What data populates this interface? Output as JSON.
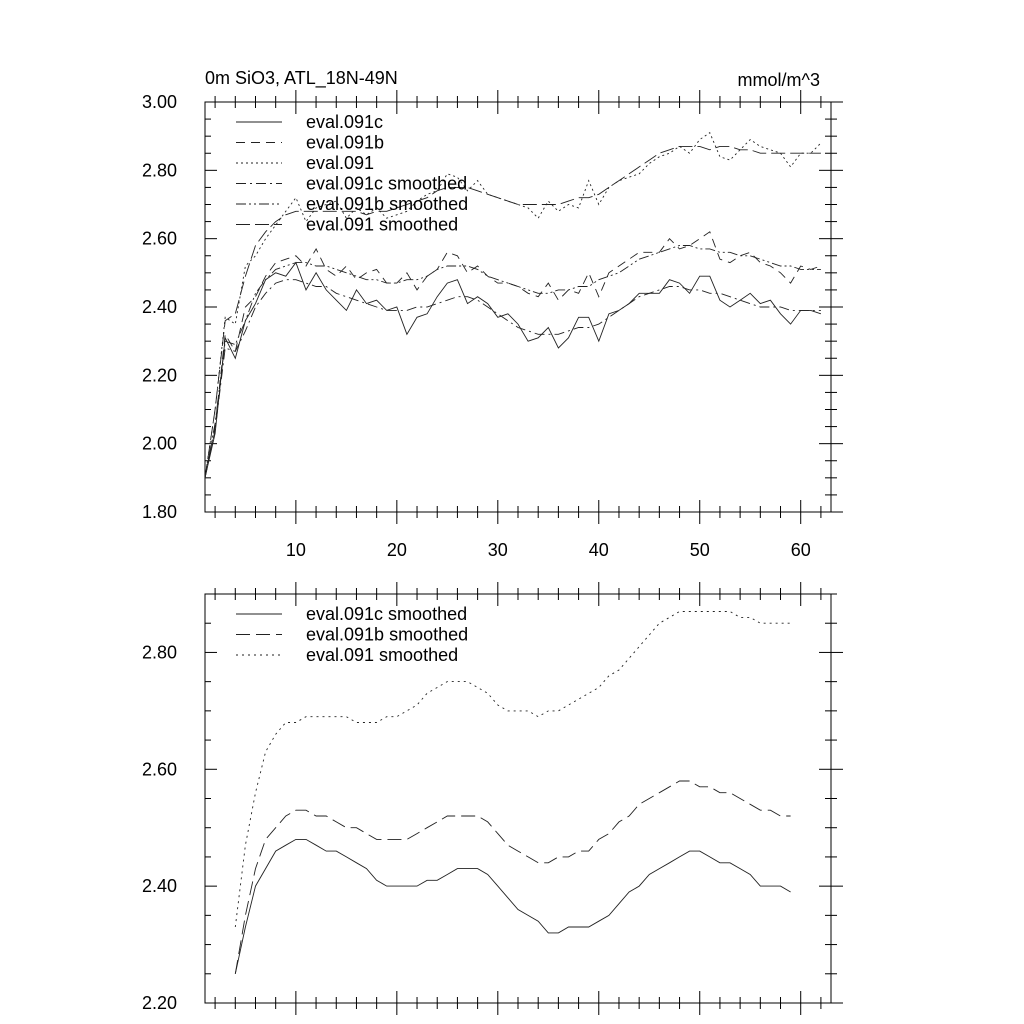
{
  "chart_data": [
    {
      "type": "line",
      "title": "0m SiO3, ATL_18N-49N",
      "units": "mmol/m^3",
      "xlim": [
        1,
        63
      ],
      "ylim": [
        1.8,
        3.0
      ],
      "xticks": [
        10,
        20,
        30,
        40,
        50,
        60
      ],
      "xtick_labels": [
        "10",
        "20",
        "30",
        "40",
        "50",
        "60"
      ],
      "yticks": [
        1.8,
        2.0,
        2.2,
        2.4,
        2.6,
        2.8,
        3.0
      ],
      "ytick_labels": [
        "1.80",
        "2.00",
        "2.20",
        "2.40",
        "2.60",
        "2.80",
        "3.00"
      ],
      "x": [
        1,
        2,
        3,
        4,
        5,
        6,
        7,
        8,
        9,
        10,
        11,
        12,
        13,
        14,
        15,
        16,
        17,
        18,
        19,
        20,
        21,
        22,
        23,
        24,
        25,
        26,
        27,
        28,
        29,
        30,
        31,
        32,
        33,
        34,
        35,
        36,
        37,
        38,
        39,
        40,
        41,
        42,
        43,
        44,
        45,
        46,
        47,
        48,
        49,
        50,
        51,
        52,
        53,
        54,
        55,
        56,
        57,
        58,
        59,
        60,
        61,
        62
      ],
      "series": [
        {
          "name": "eval.091c",
          "dash": "",
          "values": [
            1.9,
            2.03,
            2.31,
            2.25,
            2.36,
            2.41,
            2.48,
            2.5,
            2.49,
            2.53,
            2.45,
            2.5,
            2.45,
            2.42,
            2.39,
            2.45,
            2.41,
            2.42,
            2.39,
            2.4,
            2.32,
            2.37,
            2.38,
            2.43,
            2.47,
            2.48,
            2.41,
            2.43,
            2.41,
            2.37,
            2.38,
            2.35,
            2.3,
            2.31,
            2.34,
            2.28,
            2.31,
            2.37,
            2.37,
            2.3,
            2.38,
            2.39,
            2.41,
            2.44,
            2.44,
            2.44,
            2.48,
            2.47,
            2.44,
            2.49,
            2.49,
            2.42,
            2.4,
            2.42,
            2.44,
            2.41,
            2.42,
            2.38,
            2.35,
            2.39,
            2.39,
            2.38
          ]
        },
        {
          "name": "eval.091b",
          "dash": "9,6",
          "values": [
            1.9,
            2.05,
            2.32,
            2.27,
            2.4,
            2.43,
            2.49,
            2.53,
            2.54,
            2.55,
            2.52,
            2.57,
            2.51,
            2.49,
            2.52,
            2.48,
            2.5,
            2.51,
            2.47,
            2.47,
            2.5,
            2.45,
            2.49,
            2.51,
            2.56,
            2.55,
            2.5,
            2.52,
            2.49,
            2.47,
            2.47,
            2.46,
            2.44,
            2.43,
            2.47,
            2.42,
            2.45,
            2.44,
            2.5,
            2.43,
            2.5,
            2.52,
            2.54,
            2.56,
            2.56,
            2.56,
            2.6,
            2.57,
            2.58,
            2.6,
            2.62,
            2.54,
            2.53,
            2.55,
            2.56,
            2.53,
            2.52,
            2.5,
            2.47,
            2.52,
            2.51,
            2.52
          ]
        },
        {
          "name": "eval.091",
          "dash": "2,3",
          "values": [
            1.9,
            2.1,
            2.37,
            2.35,
            2.52,
            2.55,
            2.6,
            2.64,
            2.68,
            2.72,
            2.65,
            2.69,
            2.7,
            2.71,
            2.66,
            2.69,
            2.67,
            2.69,
            2.66,
            2.67,
            2.68,
            2.71,
            2.73,
            2.74,
            2.79,
            2.78,
            2.74,
            2.77,
            2.73,
            2.72,
            2.71,
            2.7,
            2.69,
            2.66,
            2.71,
            2.68,
            2.7,
            2.69,
            2.77,
            2.7,
            2.75,
            2.77,
            2.78,
            2.79,
            2.82,
            2.84,
            2.85,
            2.87,
            2.85,
            2.89,
            2.91,
            2.84,
            2.83,
            2.86,
            2.89,
            2.87,
            2.86,
            2.85,
            2.81,
            2.85,
            2.85,
            2.88
          ]
        },
        {
          "name": "eval.091c smoothed",
          "dash": "10,4,2,4",
          "values": [
            1.9,
            2.04,
            2.28,
            2.27,
            2.33,
            2.4,
            2.44,
            2.47,
            2.48,
            2.48,
            2.47,
            2.46,
            2.46,
            2.44,
            2.43,
            2.42,
            2.41,
            2.4,
            2.39,
            2.39,
            2.39,
            2.4,
            2.4,
            2.41,
            2.42,
            2.43,
            2.43,
            2.42,
            2.4,
            2.38,
            2.36,
            2.34,
            2.33,
            2.32,
            2.32,
            2.32,
            2.33,
            2.34,
            2.34,
            2.35,
            2.37,
            2.39,
            2.41,
            2.43,
            2.44,
            2.45,
            2.46,
            2.46,
            2.45,
            2.45,
            2.44,
            2.44,
            2.43,
            2.42,
            2.41,
            2.4,
            2.4,
            2.4,
            2.39,
            2.39,
            2.39,
            2.39
          ]
        },
        {
          "name": "eval.091b smoothed",
          "dash": "10,3,2,3,2,3",
          "values": [
            1.9,
            2.06,
            2.3,
            2.29,
            2.36,
            2.44,
            2.48,
            2.51,
            2.52,
            2.53,
            2.53,
            2.52,
            2.52,
            2.51,
            2.5,
            2.49,
            2.48,
            2.48,
            2.47,
            2.47,
            2.48,
            2.48,
            2.49,
            2.51,
            2.52,
            2.52,
            2.52,
            2.51,
            2.49,
            2.48,
            2.47,
            2.46,
            2.45,
            2.44,
            2.44,
            2.45,
            2.45,
            2.46,
            2.46,
            2.48,
            2.49,
            2.5,
            2.52,
            2.54,
            2.55,
            2.56,
            2.57,
            2.58,
            2.58,
            2.57,
            2.57,
            2.56,
            2.56,
            2.55,
            2.55,
            2.54,
            2.53,
            2.52,
            2.52,
            2.51,
            2.51,
            2.51
          ]
        },
        {
          "name": "eval.091 smoothed",
          "dash": "14,5",
          "values": [
            1.9,
            2.1,
            2.36,
            2.38,
            2.49,
            2.58,
            2.62,
            2.65,
            2.67,
            2.68,
            2.68,
            2.68,
            2.68,
            2.68,
            2.68,
            2.68,
            2.67,
            2.68,
            2.68,
            2.69,
            2.7,
            2.71,
            2.72,
            2.74,
            2.75,
            2.75,
            2.75,
            2.74,
            2.73,
            2.72,
            2.71,
            2.7,
            2.7,
            2.7,
            2.7,
            2.7,
            2.71,
            2.72,
            2.72,
            2.73,
            2.75,
            2.77,
            2.79,
            2.81,
            2.83,
            2.85,
            2.86,
            2.87,
            2.87,
            2.87,
            2.86,
            2.87,
            2.87,
            2.86,
            2.86,
            2.85,
            2.85,
            2.85,
            2.85,
            2.85,
            2.85,
            2.85
          ]
        }
      ]
    },
    {
      "type": "line",
      "title": "",
      "xlim": [
        1,
        63
      ],
      "ylim": [
        2.2,
        2.9
      ],
      "xticks": [
        10,
        20,
        30,
        40,
        50,
        60
      ],
      "yticks": [
        2.2,
        2.4,
        2.6,
        2.8
      ],
      "ytick_labels": [
        "2.20",
        "2.40",
        "2.60",
        "2.80"
      ],
      "x": [
        4,
        5,
        6,
        7,
        8,
        9,
        10,
        11,
        12,
        13,
        14,
        15,
        16,
        17,
        18,
        19,
        20,
        21,
        22,
        23,
        24,
        25,
        26,
        27,
        28,
        29,
        30,
        31,
        32,
        33,
        34,
        35,
        36,
        37,
        38,
        39,
        40,
        41,
        42,
        43,
        44,
        45,
        46,
        47,
        48,
        49,
        50,
        51,
        52,
        53,
        54,
        55,
        56,
        57,
        58,
        59
      ],
      "series": [
        {
          "name": "eval.091c smoothed",
          "dash": "",
          "values": [
            2.25,
            2.33,
            2.4,
            2.43,
            2.46,
            2.47,
            2.48,
            2.48,
            2.47,
            2.46,
            2.46,
            2.45,
            2.44,
            2.43,
            2.41,
            2.4,
            2.4,
            2.4,
            2.4,
            2.41,
            2.41,
            2.42,
            2.43,
            2.43,
            2.43,
            2.42,
            2.4,
            2.38,
            2.36,
            2.35,
            2.34,
            2.32,
            2.32,
            2.33,
            2.33,
            2.33,
            2.34,
            2.35,
            2.37,
            2.39,
            2.4,
            2.42,
            2.43,
            2.44,
            2.45,
            2.46,
            2.46,
            2.45,
            2.44,
            2.44,
            2.43,
            2.42,
            2.4,
            2.4,
            2.4,
            2.39
          ]
        },
        {
          "name": "eval.091b smoothed",
          "dash": "14,6",
          "values": [
            2.25,
            2.35,
            2.43,
            2.48,
            2.5,
            2.52,
            2.53,
            2.53,
            2.52,
            2.52,
            2.51,
            2.5,
            2.5,
            2.49,
            2.48,
            2.48,
            2.48,
            2.48,
            2.49,
            2.5,
            2.51,
            2.52,
            2.52,
            2.52,
            2.52,
            2.51,
            2.49,
            2.47,
            2.46,
            2.45,
            2.44,
            2.44,
            2.45,
            2.45,
            2.46,
            2.46,
            2.48,
            2.49,
            2.51,
            2.52,
            2.54,
            2.55,
            2.56,
            2.57,
            2.58,
            2.58,
            2.57,
            2.57,
            2.56,
            2.56,
            2.55,
            2.54,
            2.53,
            2.53,
            2.52,
            2.52
          ]
        },
        {
          "name": "eval.091 smoothed",
          "dash": "2,4",
          "values": [
            2.33,
            2.47,
            2.56,
            2.63,
            2.66,
            2.68,
            2.68,
            2.69,
            2.69,
            2.69,
            2.69,
            2.69,
            2.68,
            2.68,
            2.68,
            2.69,
            2.69,
            2.7,
            2.71,
            2.73,
            2.74,
            2.75,
            2.75,
            2.75,
            2.74,
            2.73,
            2.71,
            2.7,
            2.7,
            2.7,
            2.69,
            2.7,
            2.7,
            2.71,
            2.72,
            2.73,
            2.74,
            2.76,
            2.77,
            2.79,
            2.81,
            2.83,
            2.85,
            2.86,
            2.87,
            2.87,
            2.87,
            2.87,
            2.87,
            2.87,
            2.86,
            2.86,
            2.85,
            2.85,
            2.85,
            2.85
          ]
        }
      ]
    }
  ]
}
